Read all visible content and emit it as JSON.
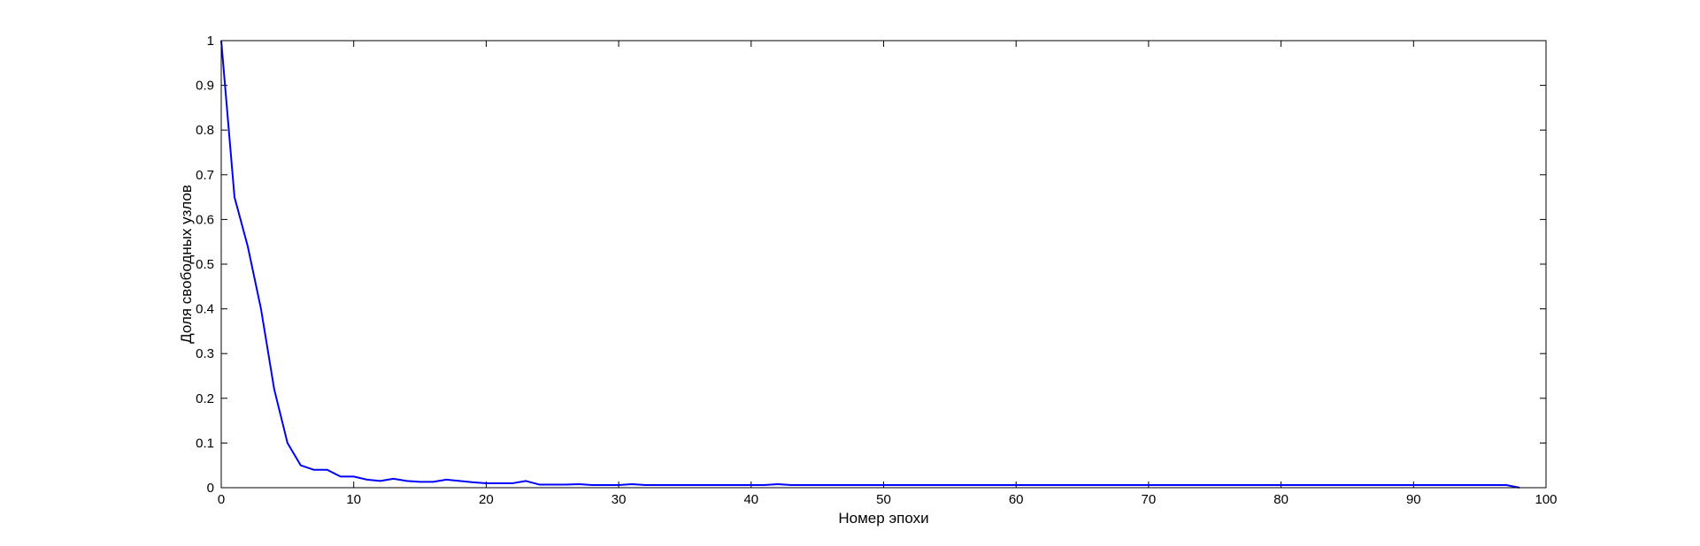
{
  "chart_data": {
    "type": "line",
    "title": "",
    "xlabel": "Номер эпохи",
    "ylabel": "Доля свободных узлов",
    "xlim": [
      0,
      100
    ],
    "ylim": [
      0,
      1
    ],
    "x_ticks": [
      0,
      10,
      20,
      30,
      40,
      50,
      60,
      70,
      80,
      90,
      100
    ],
    "y_ticks": [
      0,
      0.1,
      0.2,
      0.3,
      0.4,
      0.5,
      0.6,
      0.7,
      0.8,
      0.9,
      1
    ],
    "x_tick_labels": [
      "0",
      "10",
      "20",
      "30",
      "40",
      "50",
      "60",
      "70",
      "80",
      "90",
      "100"
    ],
    "y_tick_labels": [
      "0",
      "0.1",
      "0.2",
      "0.3",
      "0.4",
      "0.5",
      "0.6",
      "0.7",
      "0.8",
      "0.9",
      "1"
    ],
    "grid": false,
    "box": true,
    "series": [
      {
        "color": "#0000ff",
        "x": [
          0,
          1,
          2,
          3,
          4,
          5,
          6,
          7,
          8,
          9,
          10,
          11,
          12,
          13,
          14,
          15,
          16,
          17,
          18,
          19,
          20,
          21,
          22,
          23,
          24,
          25,
          26,
          27,
          28,
          29,
          30,
          31,
          32,
          33,
          34,
          35,
          36,
          37,
          38,
          39,
          40,
          41,
          42,
          43,
          44,
          45,
          46,
          47,
          48,
          49,
          50,
          51,
          52,
          53,
          54,
          55,
          56,
          57,
          58,
          59,
          60,
          61,
          62,
          63,
          64,
          65,
          66,
          67,
          68,
          69,
          70,
          71,
          72,
          73,
          74,
          75,
          76,
          77,
          78,
          79,
          80,
          81,
          82,
          83,
          84,
          85,
          86,
          87,
          88,
          89,
          90,
          91,
          92,
          93,
          94,
          95,
          96,
          97,
          98
        ],
        "y": [
          1.0,
          0.65,
          0.54,
          0.4,
          0.22,
          0.1,
          0.05,
          0.04,
          0.04,
          0.025,
          0.025,
          0.018,
          0.015,
          0.02,
          0.015,
          0.013,
          0.013,
          0.018,
          0.015,
          0.012,
          0.01,
          0.01,
          0.01,
          0.015,
          0.007,
          0.007,
          0.007,
          0.008,
          0.006,
          0.006,
          0.006,
          0.008,
          0.006,
          0.006,
          0.006,
          0.006,
          0.006,
          0.006,
          0.006,
          0.006,
          0.006,
          0.006,
          0.008,
          0.006,
          0.006,
          0.006,
          0.006,
          0.006,
          0.006,
          0.006,
          0.006,
          0.006,
          0.006,
          0.006,
          0.006,
          0.006,
          0.006,
          0.006,
          0.006,
          0.006,
          0.006,
          0.006,
          0.006,
          0.006,
          0.006,
          0.006,
          0.006,
          0.006,
          0.006,
          0.006,
          0.006,
          0.006,
          0.006,
          0.006,
          0.006,
          0.006,
          0.006,
          0.006,
          0.006,
          0.006,
          0.006,
          0.006,
          0.006,
          0.006,
          0.006,
          0.006,
          0.006,
          0.006,
          0.006,
          0.006,
          0.006,
          0.006,
          0.006,
          0.006,
          0.006,
          0.006,
          0.006,
          0.006,
          0.0
        ]
      }
    ]
  }
}
